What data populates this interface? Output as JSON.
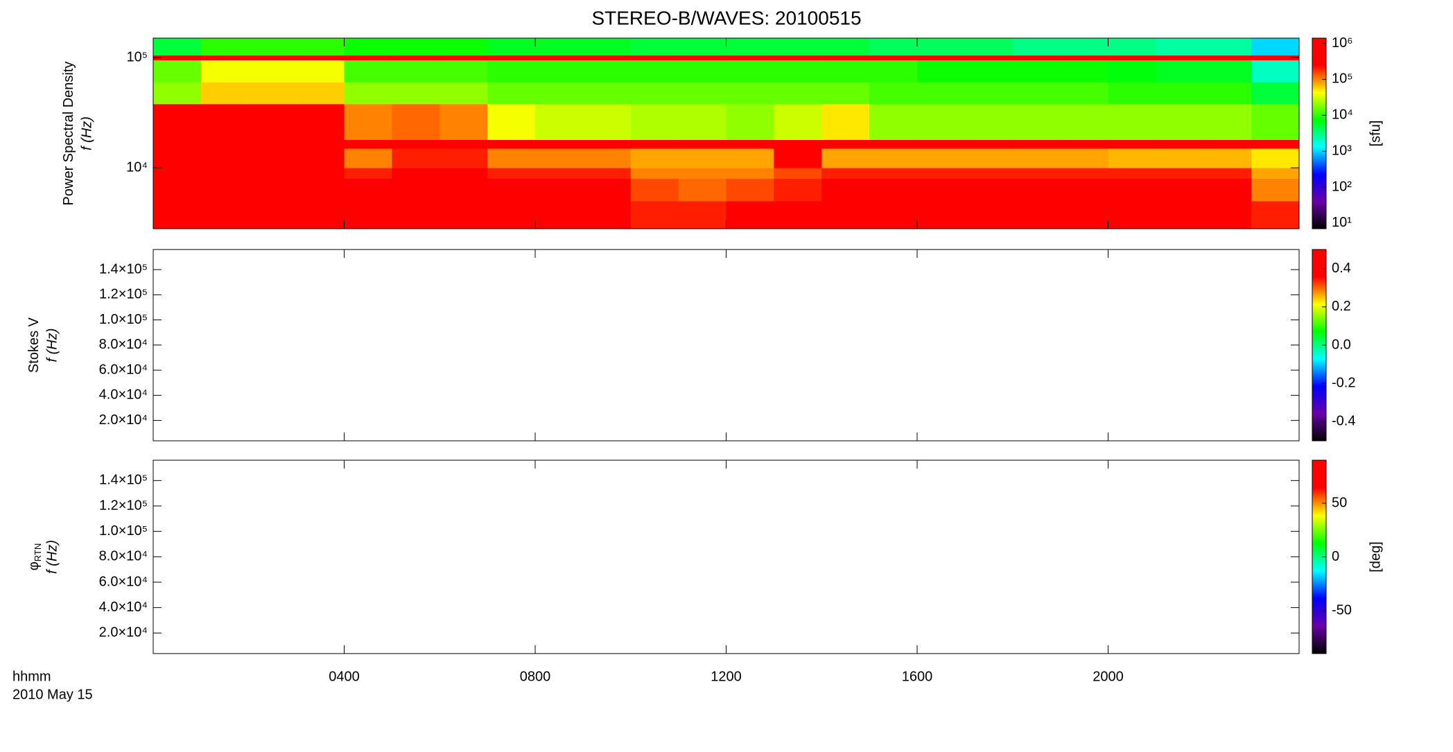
{
  "title": "STEREO-B/WAVES: 20100515",
  "x_axis": {
    "label": "hhmm",
    "date": "2010 May 15",
    "xlim": [
      0,
      24
    ],
    "xticks": [
      {
        "value": 4,
        "label": "0400"
      },
      {
        "value": 8,
        "label": "0800"
      },
      {
        "value": 12,
        "label": "1200"
      },
      {
        "value": 16,
        "label": "1600"
      },
      {
        "value": 20,
        "label": "2000"
      }
    ]
  },
  "chart_data": [
    {
      "type": "heatmap",
      "ylabel": "Power Spectral Density",
      "yunit": "f (Hz)",
      "ylog": true,
      "ylim": [
        2800,
        150000
      ],
      "yticks": [
        {
          "value": 10000,
          "label": "10⁴"
        },
        {
          "value": 100000,
          "label": "10⁵"
        }
      ],
      "time_bins": [
        0,
        1,
        2,
        3,
        4,
        5,
        6,
        7,
        8,
        9,
        10,
        11,
        12,
        13,
        14,
        15,
        16,
        17,
        18,
        19,
        20,
        21,
        22,
        23,
        24
      ],
      "freq_bins": [
        2800,
        5000,
        8000,
        10000,
        15000,
        18000,
        38000,
        60000,
        95000,
        105000,
        150000
      ],
      "values": [
        [
          600000.0,
          600000.0,
          600000.0,
          600000.0,
          600000.0,
          600000.0,
          600000.0,
          600000.0,
          600000.0,
          600000.0,
          200000.0,
          200000.0,
          300000.0,
          300000.0,
          500000.0,
          500000.0,
          500000.0,
          500000.0,
          500000.0,
          500000.0,
          500000.0,
          500000.0,
          500000.0,
          200000.0
        ],
        [
          600000.0,
          600000.0,
          600000.0,
          600000.0,
          300000.0,
          500000.0,
          500000.0,
          500000.0,
          500000.0,
          400000.0,
          150000.0,
          120000.0,
          150000.0,
          200000.0,
          300000.0,
          300000.0,
          300000.0,
          300000.0,
          300000.0,
          300000.0,
          300000.0,
          300000.0,
          400000.0,
          100000.0
        ],
        [
          500000.0,
          500000.0,
          500000.0,
          500000.0,
          200000.0,
          400000.0,
          400000.0,
          200000.0,
          200000.0,
          200000.0,
          100000.0,
          100000.0,
          100000.0,
          150000.0,
          200000.0,
          200000.0,
          200000.0,
          200000.0,
          200000.0,
          200000.0,
          200000.0,
          200000.0,
          200000.0,
          80000.0
        ],
        [
          400000.0,
          400000.0,
          400000.0,
          400000.0,
          100000.0,
          200000.0,
          200000.0,
          100000.0,
          100000.0,
          100000.0,
          80000.0,
          80000.0,
          80000.0,
          300000.0,
          80000.0,
          80000.0,
          80000.0,
          80000.0,
          80000.0,
          80000.0,
          70000.0,
          70000.0,
          70000.0,
          50000.0
        ],
        [
          600000.0,
          600000.0,
          600000.0,
          600000.0,
          600000.0,
          600000.0,
          600000.0,
          600000.0,
          600000.0,
          600000.0,
          600000.0,
          600000.0,
          600000.0,
          600000.0,
          600000.0,
          600000.0,
          600000.0,
          600000.0,
          600000.0,
          600000.0,
          600000.0,
          600000.0,
          600000.0,
          600000.0
        ],
        [
          300000.0,
          400000.0,
          400000.0,
          400000.0,
          100000.0,
          120000.0,
          100000.0,
          40000.0,
          30000.0,
          30000.0,
          25000.0,
          25000.0,
          20000.0,
          30000.0,
          50000.0,
          20000.0,
          20000.0,
          20000.0,
          20000.0,
          20000.0,
          20000.0,
          20000.0,
          20000.0,
          15000.0
        ],
        [
          20000.0,
          60000.0,
          60000.0,
          60000.0,
          20000.0,
          20000.0,
          20000.0,
          15000.0,
          15000.0,
          15000.0,
          15000.0,
          15000.0,
          15000.0,
          15000.0,
          15000.0,
          12000.0,
          12000.0,
          12000.0,
          12000.0,
          12000.0,
          10000.0,
          10000.0,
          10000.0,
          5000.0
        ],
        [
          15000.0,
          40000.0,
          40000.0,
          40000.0,
          12000.0,
          12000.0,
          12000.0,
          10000.0,
          10000.0,
          10000.0,
          10000.0,
          10000.0,
          10000.0,
          10000.0,
          10000.0,
          10000.0,
          8000.0,
          8000.0,
          8000.0,
          8000.0,
          7000.0,
          6000.0,
          6000.0,
          2000.0
        ],
        [
          600000.0,
          600000.0,
          600000.0,
          600000.0,
          600000.0,
          600000.0,
          600000.0,
          600000.0,
          600000.0,
          600000.0,
          600000.0,
          600000.0,
          600000.0,
          600000.0,
          600000.0,
          600000.0,
          600000.0,
          600000.0,
          600000.0,
          600000.0,
          600000.0,
          600000.0,
          600000.0,
          600000.0
        ],
        [
          5000.0,
          10000.0,
          10000.0,
          10000.0,
          8000.0,
          8000.0,
          8000.0,
          6000.0,
          6000.0,
          6000.0,
          5000.0,
          5000.0,
          5000.0,
          5000.0,
          5000.0,
          4000.0,
          4000.0,
          4000.0,
          3000.0,
          3000.0,
          3000.0,
          2500.0,
          2500.0,
          1000.0
        ]
      ],
      "colormap": [
        "#000000",
        "#6a00a8",
        "#0000ff",
        "#00ffff",
        "#00ff00",
        "#ffff00",
        "#ff0000",
        "#ff0000"
      ],
      "clog": true,
      "clim": [
        7,
        1400000
      ],
      "clabel": "[sfu]",
      "cticks": [
        {
          "value": 10,
          "label": "10¹"
        },
        {
          "value": 100,
          "label": "10²"
        },
        {
          "value": 1000,
          "label": "10³"
        },
        {
          "value": 10000,
          "label": "10⁴"
        },
        {
          "value": 100000,
          "label": "10⁵"
        },
        {
          "value": 1000000,
          "label": "10⁶"
        }
      ]
    },
    {
      "type": "heatmap",
      "ylabel": "Stokes V",
      "yunit": "f (Hz)",
      "ylim": [
        3800,
        156000
      ],
      "yticks": [
        {
          "value": 20000,
          "label": "2.0×10⁴"
        },
        {
          "value": 40000,
          "label": "4.0×10⁴"
        },
        {
          "value": 60000,
          "label": "6.0×10⁴"
        },
        {
          "value": 80000,
          "label": "8.0×10⁴"
        },
        {
          "value": 100000,
          "label": "1.0×10⁵"
        },
        {
          "value": 120000,
          "label": "1.2×10⁵"
        },
        {
          "value": 140000,
          "label": "1.4×10⁵"
        }
      ],
      "colormap": [
        "#000000",
        "#6a00a8",
        "#0000ff",
        "#00ffff",
        "#00ff00",
        "#ffff00",
        "#ff0000",
        "#ff0000"
      ],
      "clim": [
        -0.5,
        0.5
      ],
      "cticks": [
        -0.4,
        -0.2,
        {
          "value": 0,
          "label": "0.0"
        },
        0.2,
        0.4
      ]
    },
    {
      "type": "heatmap",
      "ylabel": "φ",
      "ylabel_sub": "RTN",
      "yunit": "f (Hz)",
      "ylim": [
        3800,
        156000
      ],
      "yticks": [
        {
          "value": 20000,
          "label": "2.0×10⁴"
        },
        {
          "value": 40000,
          "label": "4.0×10⁴"
        },
        {
          "value": 60000,
          "label": "6.0×10⁴"
        },
        {
          "value": 80000,
          "label": "8.0×10⁴"
        },
        {
          "value": 100000,
          "label": "1.0×10⁵"
        },
        {
          "value": 120000,
          "label": "1.2×10⁵"
        },
        {
          "value": 140000,
          "label": "1.4×10⁵"
        }
      ],
      "colormap": [
        "#000000",
        "#6a00a8",
        "#0000ff",
        "#00ffff",
        "#00ff00",
        "#ffff00",
        "#ff0000",
        "#ff0000"
      ],
      "clim": [
        -90,
        90
      ],
      "clabel": "[deg]",
      "cticks": [
        -50,
        0,
        50
      ]
    }
  ]
}
